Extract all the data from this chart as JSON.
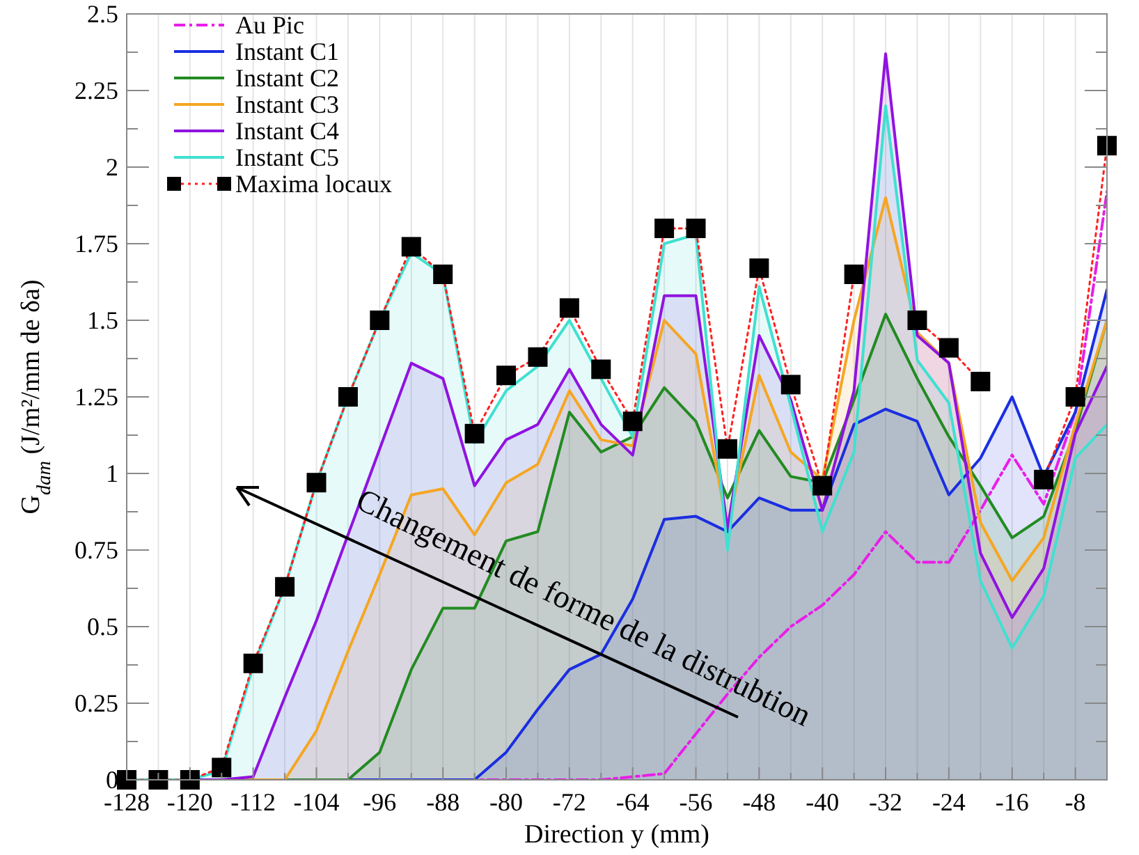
{
  "chart_data": {
    "type": "line",
    "xlabel": "Direction y (mm)",
    "ylabel": "G$_{dam}$  (J/m²/mm de δa)",
    "x": [
      -128,
      -124,
      -120,
      -116,
      -112,
      -108,
      -104,
      -100,
      -96,
      -92,
      -88,
      -84,
      -80,
      -76,
      -72,
      -68,
      -64,
      -60,
      -56,
      -52,
      -48,
      -44,
      -40,
      -36,
      -32,
      -28,
      -24,
      -20,
      -16,
      -12,
      -8,
      -4
    ],
    "xlim": [
      -128,
      -4
    ],
    "xticks": [
      -128,
      {
        "value": -124,
        "label": null
      },
      -120,
      {
        "value": -116,
        "label": null
      },
      -112,
      {
        "value": -108,
        "label": null
      },
      -104,
      {
        "value": -100,
        "label": null
      },
      -96,
      {
        "value": -92,
        "label": null
      },
      -88,
      {
        "value": -84,
        "label": null
      },
      -80,
      {
        "value": -76,
        "label": null
      },
      -72,
      {
        "value": -68,
        "label": null
      },
      -64,
      {
        "value": -60,
        "label": null
      },
      -56,
      {
        "value": -52,
        "label": null
      },
      -48,
      {
        "value": -44,
        "label": null
      },
      -40,
      {
        "value": -36,
        "label": null
      },
      -32,
      {
        "value": -28,
        "label": null
      },
      -24,
      {
        "value": -20,
        "label": null
      },
      -16,
      {
        "value": -12,
        "label": null
      },
      -8
    ],
    "ylim": [
      0,
      2.5
    ],
    "yticks": [
      0,
      {
        "value": 0.125,
        "label": null
      },
      0.25,
      {
        "value": 0.375,
        "label": null
      },
      0.5,
      {
        "value": 0.625,
        "label": null
      },
      0.75,
      {
        "value": 0.875,
        "label": null
      },
      1,
      {
        "value": 1.125,
        "label": null
      },
      1.25,
      {
        "value": 1.375,
        "label": null
      },
      1.5,
      {
        "value": 1.625,
        "label": null
      },
      1.75,
      {
        "value": 1.875,
        "label": null
      },
      2,
      {
        "value": 2.125,
        "label": null
      },
      2.25,
      {
        "value": 2.375,
        "label": null
      },
      2.5
    ],
    "grid": "x",
    "legend": "top left",
    "annotations": [
      "Changement de forme de la distrubtion"
    ],
    "series": [
      {
        "name": "Au Pic",
        "color": "#e81ee8",
        "line_style": "dashed",
        "values": [
          null,
          null,
          null,
          null,
          null,
          null,
          null,
          null,
          null,
          null,
          0,
          0,
          0,
          0,
          0,
          0,
          0.01,
          0.02,
          0.15,
          0.28,
          0.4,
          0.5,
          0.57,
          0.67,
          0.81,
          0.71,
          0.71,
          0.88,
          1.06,
          0.9,
          1.2,
          1.92
        ]
      },
      {
        "name": "Instant C1",
        "type": "area",
        "color": "#1a2ee0",
        "values": [
          0,
          0,
          0,
          0,
          0,
          0,
          0,
          0,
          0,
          0,
          0,
          0,
          0.09,
          0.23,
          0.36,
          0.41,
          0.59,
          0.85,
          0.86,
          0.81,
          0.92,
          0.88,
          0.88,
          1.16,
          1.21,
          1.17,
          0.93,
          1.05,
          1.25,
          0.99,
          1.2,
          1.6
        ]
      },
      {
        "name": "Instant C2",
        "type": "area",
        "color": "#228b22",
        "values": [
          0,
          0,
          0,
          0,
          0,
          0,
          0,
          0,
          0.09,
          0.36,
          0.56,
          0.56,
          0.78,
          0.81,
          1.2,
          1.07,
          1.12,
          1.28,
          1.17,
          0.92,
          1.14,
          0.99,
          0.97,
          1.24,
          1.52,
          1.31,
          1.12,
          0.96,
          0.79,
          0.86,
          1.14,
          1.5
        ]
      },
      {
        "name": "Instant C3",
        "type": "area",
        "color": "#f5a623",
        "values": [
          0,
          0,
          0,
          0,
          0,
          0,
          0.16,
          0.42,
          0.67,
          0.93,
          0.95,
          0.8,
          0.97,
          1.03,
          1.27,
          1.11,
          1.09,
          1.5,
          1.39,
          0.82,
          1.32,
          1.07,
          0.98,
          1.5,
          1.9,
          1.46,
          1.36,
          0.84,
          0.65,
          0.79,
          1.16,
          1.5
        ]
      },
      {
        "name": "Instant C4",
        "type": "area",
        "color": "#9013e0",
        "values": [
          0,
          0,
          0,
          0,
          0.01,
          0.27,
          0.52,
          0.8,
          1.08,
          1.36,
          1.31,
          0.96,
          1.11,
          1.16,
          1.34,
          1.16,
          1.06,
          1.58,
          1.58,
          0.82,
          1.45,
          1.24,
          0.88,
          1.27,
          2.37,
          1.45,
          1.36,
          0.74,
          0.53,
          0.69,
          1.13,
          1.35
        ]
      },
      {
        "name": "Instant C5",
        "type": "area",
        "color": "#40e0d0",
        "values": [
          0,
          0,
          0,
          0.03,
          0.37,
          0.63,
          0.97,
          1.25,
          1.5,
          1.72,
          1.65,
          1.1,
          1.27,
          1.35,
          1.5,
          1.31,
          1.12,
          1.75,
          1.78,
          0.75,
          1.61,
          1.22,
          0.81,
          1.07,
          2.2,
          1.37,
          1.23,
          0.65,
          0.43,
          0.6,
          1.05,
          1.16
        ]
      },
      {
        "name": "Maxima locaux",
        "color": "#ff2020",
        "line_style": "dotted",
        "marker": "square",
        "colors": [
          "#000000",
          "#000000",
          "#000000",
          "#000000",
          "#000000",
          "#000000",
          "#000000",
          "#000000",
          "#000000",
          "#000000",
          "#000000",
          "#000000",
          "#000000",
          "#000000",
          "#000000",
          "#000000",
          "#000000",
          "#000000",
          "#000000",
          "#000000",
          "#000000",
          "#000000",
          "#000000",
          "#000000",
          "#000000",
          "#000000",
          "#000000",
          "#000000",
          "#000000",
          "#000000",
          "#000000",
          "#000000"
        ],
        "values": [
          0,
          0,
          0,
          0.04,
          0.38,
          0.63,
          0.97,
          1.25,
          1.5,
          1.74,
          1.65,
          1.13,
          1.32,
          1.38,
          1.54,
          1.34,
          1.17,
          1.8,
          1.8,
          1.08,
          1.67,
          1.29,
          0.96,
          1.65,
          null,
          1.5,
          1.41,
          1.3,
          null,
          0.98,
          1.25,
          2.07
        ]
      }
    ]
  }
}
